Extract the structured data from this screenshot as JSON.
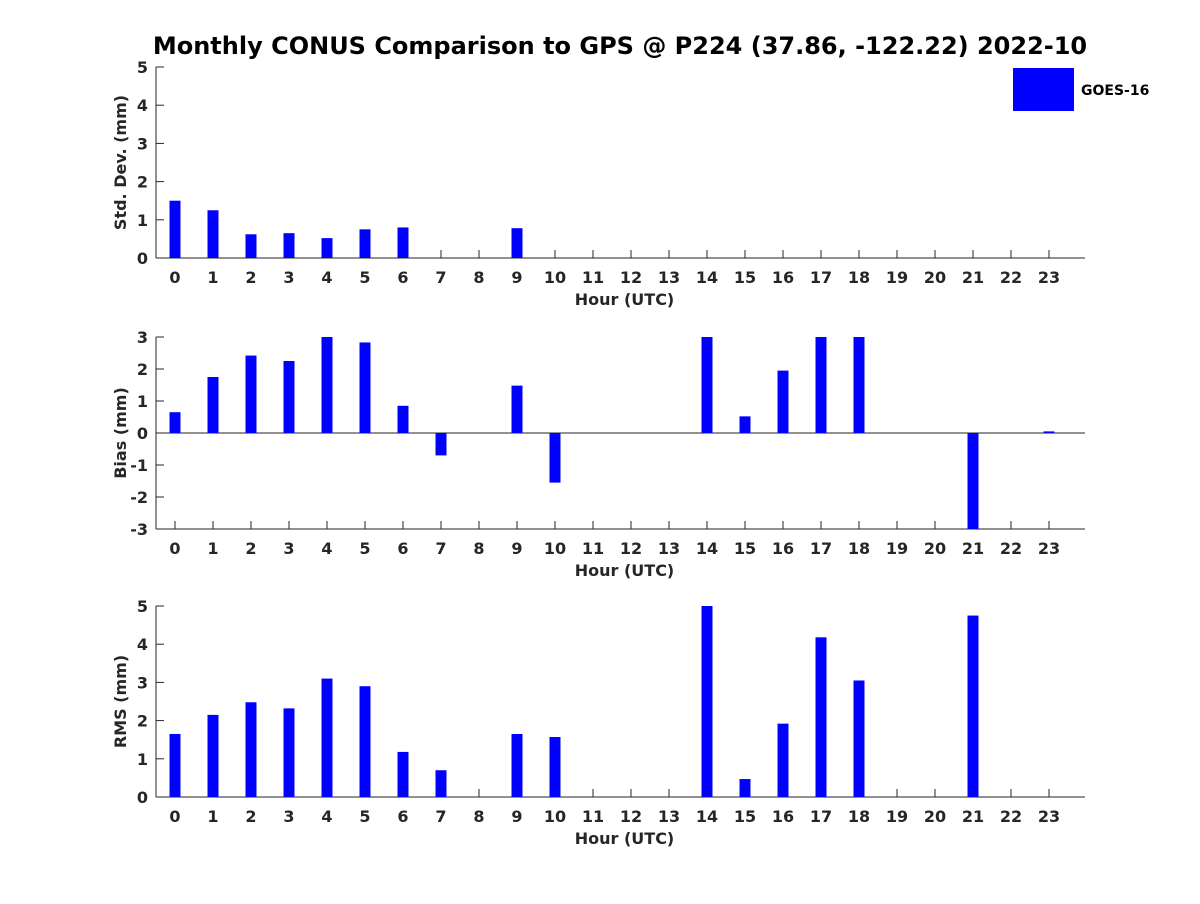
{
  "title": "Monthly CONUS Comparison to GPS @ P224 (37.86, -122.22) 2022-10",
  "legend": {
    "label": "GOES-16",
    "color": "#0000ff",
    "placement": "top-right"
  },
  "chart_data": [
    {
      "type": "bar",
      "categories": [
        "0",
        "1",
        "2",
        "3",
        "4",
        "5",
        "6",
        "7",
        "8",
        "9",
        "10",
        "11",
        "12",
        "13",
        "14",
        "15",
        "16",
        "17",
        "18",
        "19",
        "20",
        "21",
        "22",
        "23"
      ],
      "series": [
        {
          "name": "GOES-16",
          "values": [
            1.5,
            1.25,
            0.62,
            0.65,
            0.52,
            0.75,
            0.8,
            null,
            null,
            0.78,
            null,
            null,
            null,
            null,
            null,
            null,
            null,
            null,
            null,
            null,
            null,
            null,
            null,
            null
          ]
        }
      ],
      "xlabel": "Hour (UTC)",
      "ylabel": "Std. Dev. (mm)",
      "ylim": [
        0,
        5
      ],
      "yticks": [
        0,
        1,
        2,
        3,
        4,
        5
      ],
      "grid": false
    },
    {
      "type": "bar",
      "categories": [
        "0",
        "1",
        "2",
        "3",
        "4",
        "5",
        "6",
        "7",
        "8",
        "9",
        "10",
        "11",
        "12",
        "13",
        "14",
        "15",
        "16",
        "17",
        "18",
        "19",
        "20",
        "21",
        "22",
        "23"
      ],
      "series": [
        {
          "name": "GOES-16",
          "values": [
            0.65,
            1.75,
            2.42,
            2.25,
            3.0,
            2.83,
            0.85,
            -0.7,
            null,
            1.48,
            -1.55,
            null,
            null,
            null,
            3.0,
            0.52,
            1.95,
            3.0,
            3.0,
            null,
            null,
            -3.0,
            null,
            0.05
          ]
        }
      ],
      "xlabel": "Hour (UTC)",
      "ylabel": "Bias (mm)",
      "ylim": [
        -3,
        3
      ],
      "yticks": [
        -3,
        -2,
        -1,
        0,
        1,
        2,
        3
      ],
      "zero_line": true,
      "grid": false
    },
    {
      "type": "bar",
      "categories": [
        "0",
        "1",
        "2",
        "3",
        "4",
        "5",
        "6",
        "7",
        "8",
        "9",
        "10",
        "11",
        "12",
        "13",
        "14",
        "15",
        "16",
        "17",
        "18",
        "19",
        "20",
        "21",
        "22",
        "23"
      ],
      "series": [
        {
          "name": "GOES-16",
          "values": [
            1.65,
            2.15,
            2.48,
            2.32,
            3.1,
            2.9,
            1.18,
            0.7,
            null,
            1.65,
            1.57,
            null,
            null,
            null,
            5.0,
            0.47,
            1.92,
            4.18,
            3.05,
            null,
            null,
            4.75,
            null,
            null
          ]
        }
      ],
      "xlabel": "Hour (UTC)",
      "ylabel": "RMS (mm)",
      "ylim": [
        0,
        5
      ],
      "yticks": [
        0,
        1,
        2,
        3,
        4,
        5
      ],
      "grid": false
    }
  ]
}
